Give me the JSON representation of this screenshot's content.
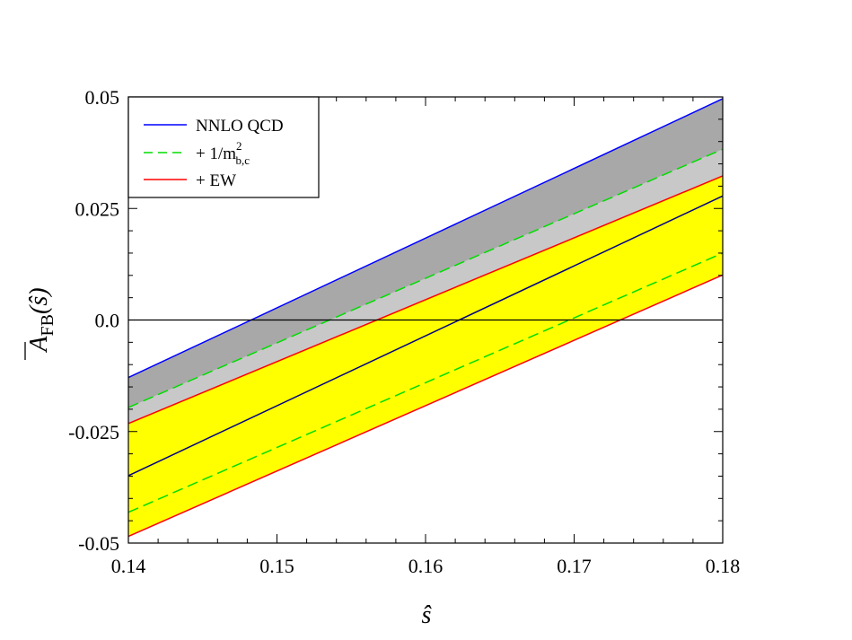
{
  "chart_data": {
    "type": "line",
    "title": "",
    "xlabel": "ŝ",
    "ylabel": {
      "main": "A",
      "subscript": "FB",
      "argument": "(ŝ)"
    },
    "xlim": [
      0.14,
      0.18
    ],
    "ylim": [
      -0.05,
      0.05
    ],
    "xticks": [
      0.14,
      0.15,
      0.16,
      0.17,
      0.18
    ],
    "xtick_labels": [
      "0.14",
      "0.15",
      "0.16",
      "0.17",
      "0.18"
    ],
    "yticks": [
      -0.05,
      -0.025,
      0.0,
      0.025,
      0.05
    ],
    "ytick_labels": [
      "-0.05",
      "-0.025",
      "0.0",
      "0.025",
      "0.05"
    ],
    "grid": false,
    "legend_position": "top-left",
    "legend": [
      {
        "label": "NNLO QCD",
        "color": "#0000ff",
        "dash": "solid"
      },
      {
        "label_prefix": "+ 1/m",
        "label_sup": "2",
        "label_sub": "b,c",
        "color": "#00dd00",
        "dash": "dashed"
      },
      {
        "label": "+ EW",
        "color": "#ff0000",
        "dash": "solid"
      }
    ],
    "x": [
      0.14,
      0.18
    ],
    "bands": [
      {
        "name": "NNLO QCD",
        "fill": "#a8a8a8",
        "lower": [
          -0.0485,
          0.0101
        ],
        "upper": [
          -0.0129,
          0.0496
        ]
      },
      {
        "name": "+ 1/m_b,c^2",
        "fill": "#c8c8c8",
        "lower": [
          -0.0485,
          0.0101
        ],
        "upper": [
          -0.0196,
          0.0383
        ]
      },
      {
        "name": "+ EW",
        "fill": "#ffff00",
        "lower": [
          -0.0485,
          0.0101
        ],
        "upper": [
          -0.0232,
          0.0323
        ]
      }
    ],
    "series": [
      {
        "name": "NNLO QCD",
        "color": "#0000ff",
        "dash": "solid",
        "values": [
          -0.0129,
          0.0496
        ]
      },
      {
        "name": "+ 1/m_b,c^2",
        "color": "#00dd00",
        "dash": "dashed",
        "values": [
          -0.0196,
          0.0383
        ]
      },
      {
        "name": "+ EW",
        "color": "#ff0000",
        "dash": "solid",
        "values": [
          -0.0232,
          0.0323
        ]
      },
      {
        "name": "central",
        "color": "#00008b",
        "dash": "solid",
        "values": [
          -0.0349,
          0.0278
        ]
      },
      {
        "name": "lower 1/m_b,c^2",
        "color": "#00dd00",
        "dash": "dashed",
        "values": [
          -0.0431,
          0.015
        ]
      },
      {
        "name": "lower EW",
        "color": "#ff0000",
        "dash": "solid",
        "values": [
          -0.0485,
          0.0101
        ]
      }
    ],
    "reference_lines": [
      {
        "y": 0.0,
        "color": "#000000"
      }
    ]
  }
}
